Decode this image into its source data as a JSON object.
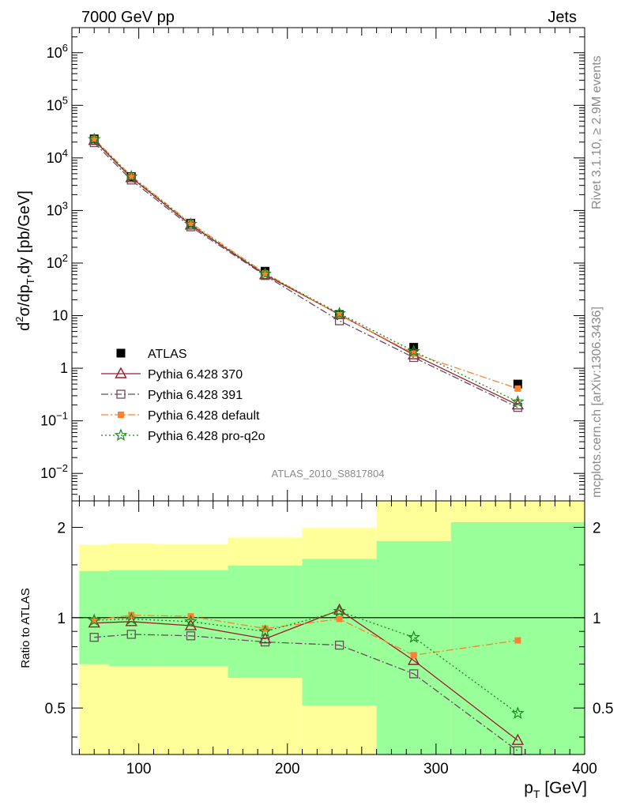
{
  "header": {
    "left": "7000 GeV pp",
    "right": "Jets"
  },
  "side_labels": {
    "rivet": "Rivet 3.1.10, ≥ 2.9M events",
    "mcplots": "mcplots.cern.ch [arXiv:1306.3436]"
  },
  "analysis_id": "ATLAS_2010_S8817804",
  "colors": {
    "atlas": "#000000",
    "p370": "#9b1c2e",
    "p391": "#6b4a5e",
    "pdefault": "#ff8030",
    "pq2o": "#1a8a1a",
    "band_inner": "#99ff99",
    "band_outer": "#ffff99"
  },
  "chart_data": [
    {
      "type": "scatter",
      "panel": "main",
      "yscale": "log",
      "ylabel": "d²σ/dp_T,dy [pb/GeV]",
      "xlim": [
        55,
        400
      ],
      "ylim": [
        0.003,
        3000000
      ],
      "y_ticks": [
        {
          "v": 1000000,
          "b": "10",
          "e": "6"
        },
        {
          "v": 100000,
          "b": "10",
          "e": "5"
        },
        {
          "v": 10000,
          "b": "10",
          "e": "4"
        },
        {
          "v": 1000,
          "b": "10",
          "e": "3"
        },
        {
          "v": 100,
          "b": "10",
          "e": "2"
        },
        {
          "v": 10,
          "b": "10",
          "e": ""
        },
        {
          "v": 1,
          "b": "1",
          "e": ""
        },
        {
          "v": 0.1,
          "b": "10",
          "e": "−1"
        },
        {
          "v": 0.01,
          "b": "10",
          "e": "−2"
        }
      ],
      "legend_placement": "bottom-left",
      "x": [
        70,
        95,
        135,
        185,
        235,
        285,
        355
      ],
      "series": [
        {
          "name": "ATLAS",
          "key": "atlas",
          "marker": "square-filled",
          "line": "none",
          "values": [
            23000,
            4400,
            570,
            70,
            10.5,
            2.5,
            0.5
          ]
        },
        {
          "name": "Pythia 6.428 370",
          "key": "p370",
          "marker": "triangle-open",
          "line": "solid",
          "values": [
            21500,
            4200,
            530,
            60,
            10.5,
            1.8,
            0.2
          ]
        },
        {
          "name": "Pythia 6.428 391",
          "key": "p391",
          "marker": "square-open",
          "line": "dashdot",
          "values": [
            19500,
            3800,
            490,
            58,
            8.0,
            1.6,
            0.18
          ]
        },
        {
          "name": "Pythia 6.428 default",
          "key": "pdefault",
          "marker": "square-filled-small",
          "line": "dashdot",
          "values": [
            23000,
            4500,
            575,
            64,
            10.3,
            1.9,
            0.41
          ]
        },
        {
          "name": "Pythia 6.428 pro-q2o",
          "key": "pq2o",
          "marker": "star",
          "line": "dotted",
          "values": [
            22500,
            4400,
            550,
            62,
            11.0,
            2.1,
            0.23
          ]
        }
      ]
    },
    {
      "type": "line",
      "panel": "ratio",
      "yscale": "log",
      "ylabel": "Ratio to ATLAS",
      "xlabel": "p_T [GeV]",
      "xlim": [
        55,
        400
      ],
      "ylim": [
        0.35,
        2.45
      ],
      "y_ticks": [
        0.5,
        1,
        2
      ],
      "x_ticks": [
        100,
        200,
        300,
        400
      ],
      "bands": {
        "edges": [
          60,
          80,
          110,
          160,
          210,
          260,
          310,
          400
        ],
        "inner": [
          [
            0.7,
            1.43
          ],
          [
            0.69,
            1.44
          ],
          [
            0.69,
            1.44
          ],
          [
            0.63,
            1.49
          ],
          [
            0.51,
            1.57
          ],
          [
            0.3,
            1.8
          ],
          [
            0.3,
            2.08
          ]
        ],
        "outer": [
          [
            0.3,
            1.75
          ],
          [
            0.3,
            1.77
          ],
          [
            0.3,
            1.76
          ],
          [
            0.3,
            1.85
          ],
          [
            0.3,
            1.99
          ],
          [
            0.3,
            2.6
          ],
          [
            0.3,
            2.6
          ]
        ]
      },
      "x": [
        70,
        95,
        135,
        185,
        235,
        285,
        355
      ],
      "series": [
        {
          "name": "Pythia 6.428 370",
          "key": "p370",
          "marker": "triangle-open",
          "line": "solid",
          "values": [
            0.96,
            0.97,
            0.94,
            0.85,
            1.06,
            0.72,
            0.39
          ]
        },
        {
          "name": "Pythia 6.428 391",
          "key": "p391",
          "marker": "square-open",
          "line": "dashdot",
          "values": [
            0.86,
            0.88,
            0.87,
            0.83,
            0.81,
            0.65,
            0.36
          ]
        },
        {
          "name": "Pythia 6.428 default",
          "key": "pdefault",
          "marker": "square-filled-small",
          "line": "dashdot",
          "values": [
            0.98,
            1.02,
            1.01,
            0.92,
            0.99,
            0.75,
            0.84
          ]
        },
        {
          "name": "Pythia 6.428 pro-q2o",
          "key": "pq2o",
          "marker": "star",
          "line": "dotted",
          "values": [
            0.98,
            0.99,
            0.97,
            0.9,
            1.05,
            0.86,
            0.48
          ]
        }
      ]
    }
  ]
}
